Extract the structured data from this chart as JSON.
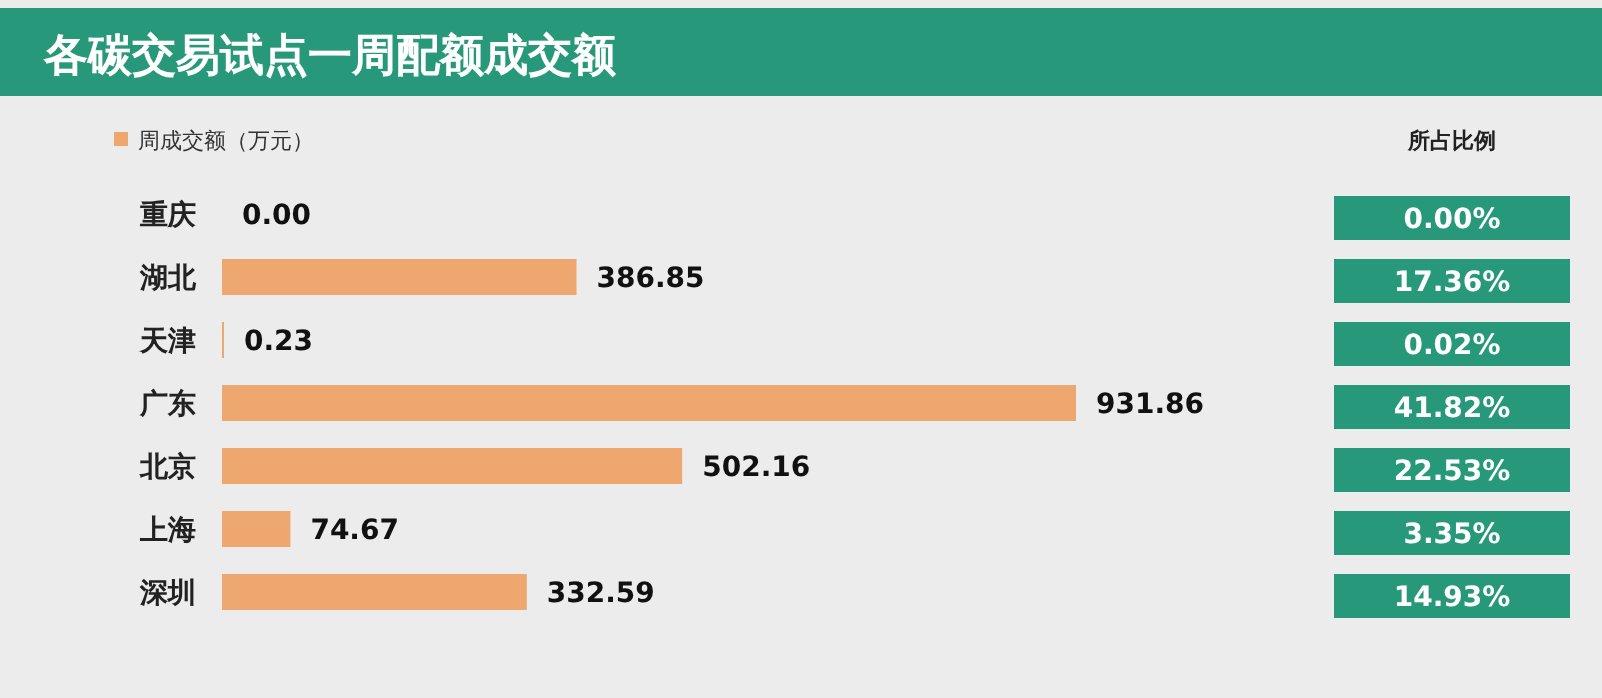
{
  "chart_data": [
    {
      "type": "bar",
      "orientation": "horizontal",
      "title": "各碳交易试点一周配额成交额",
      "categories": [
        "重庆",
        "湖北",
        "天津",
        "广东",
        "北京",
        "上海",
        "深圳"
      ],
      "series": [
        {
          "name": "周成交额（万元）",
          "color": "#eea86f",
          "values": [
            0.0,
            386.85,
            0.23,
            931.86,
            502.16,
            74.67,
            332.59
          ],
          "value_labels": [
            "0.00",
            "386.85",
            "0.23",
            "931.86",
            "502.16",
            "74.67",
            "332.59"
          ]
        }
      ],
      "legend": "top left",
      "grid": false
    },
    {
      "type": "other",
      "title": "所占比例",
      "color": "#27997a",
      "annotations": [
        "0.00%",
        "17.36%",
        "0.02%",
        "41.82%",
        "22.53%",
        "3.35%",
        "14.93%"
      ]
    }
  ]
}
